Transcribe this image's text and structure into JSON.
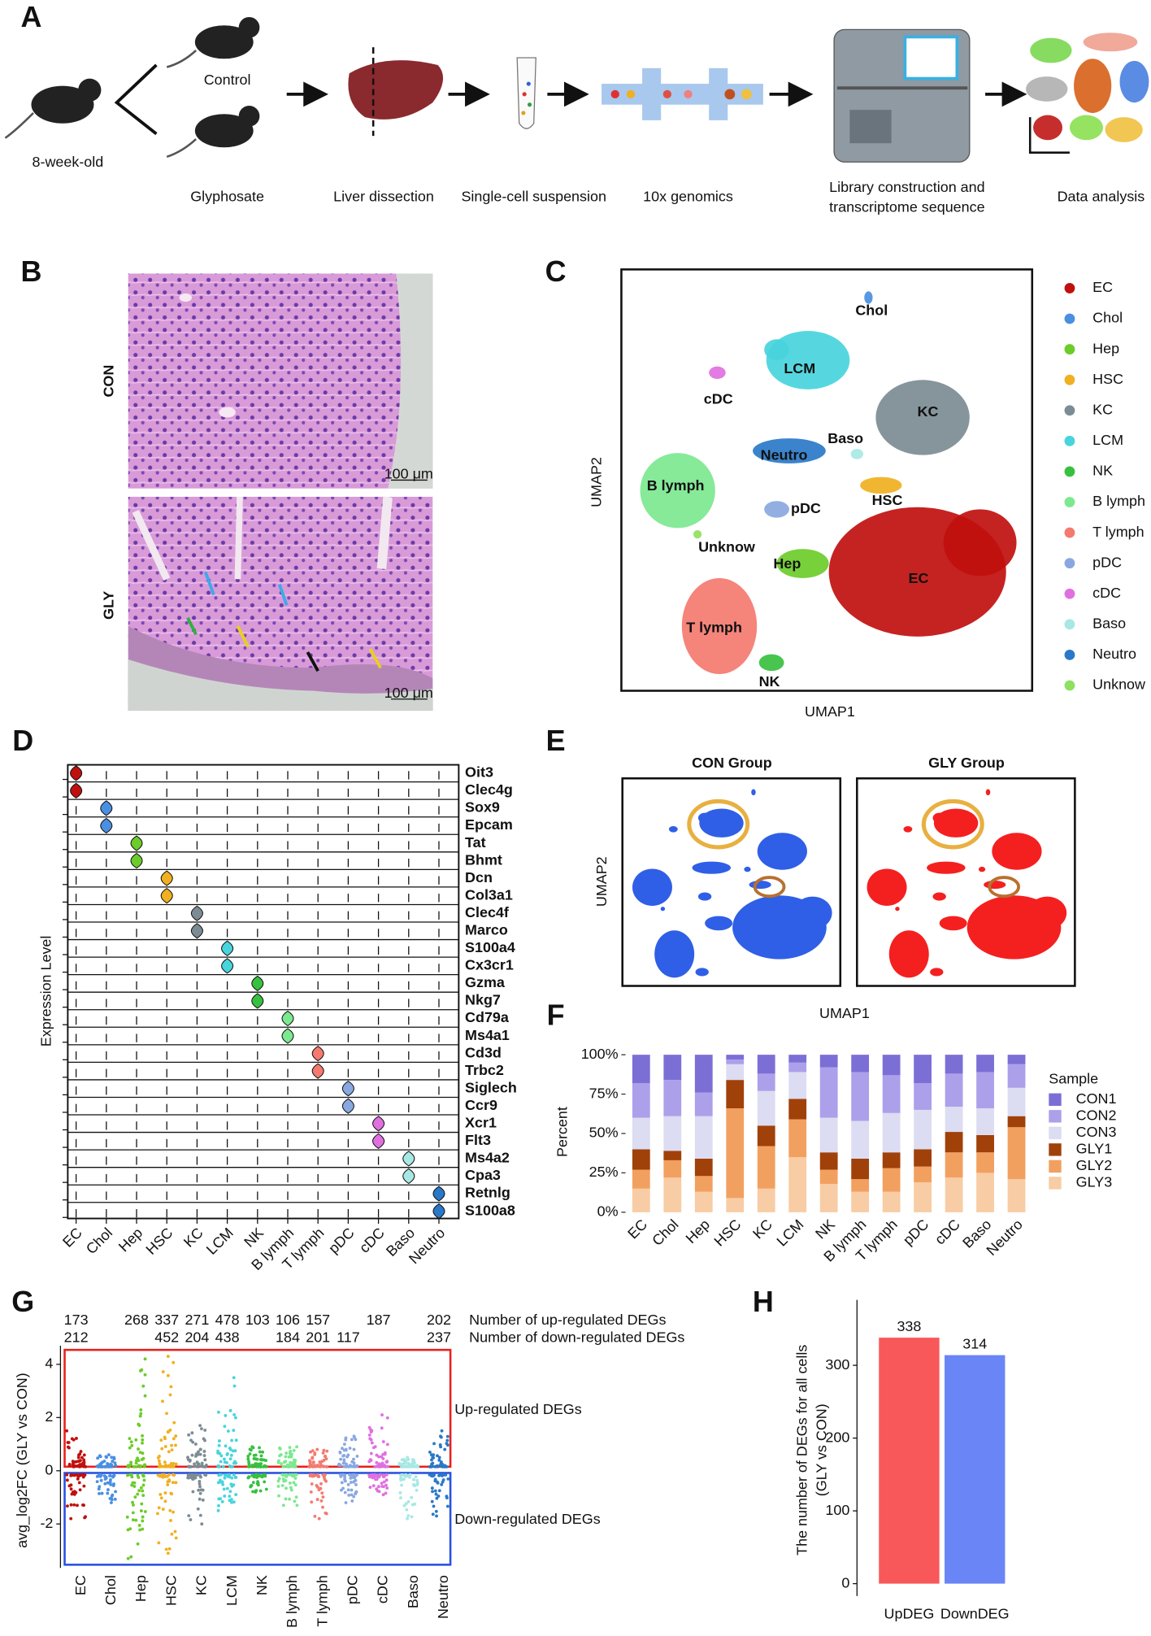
{
  "panel_labels": [
    "A",
    "B",
    "C",
    "D",
    "E",
    "F",
    "G",
    "H"
  ],
  "panel_a": {
    "mouse_labels": {
      "control": "Control",
      "age": "8-week-old"
    },
    "steps": [
      [
        "Glyphosate"
      ],
      [
        "Liver dissection"
      ],
      [
        "Single-cell suspension"
      ],
      [
        "10x genomics"
      ],
      [
        "Library construction and",
        "transcriptome sequence"
      ],
      [
        "Data analysis"
      ]
    ]
  },
  "panel_b": {
    "rows": [
      "CON",
      "GLY"
    ],
    "scale_bar": "100 μm"
  },
  "panel_c": {
    "xlabel": "UMAP1",
    "ylabel": "UMAP2",
    "clusters": [
      {
        "name": "EC",
        "color": "#c0100e"
      },
      {
        "name": "Chol",
        "color": "#4a8fe0"
      },
      {
        "name": "Hep",
        "color": "#6ccc2a"
      },
      {
        "name": "HSC",
        "color": "#f0b020"
      },
      {
        "name": "KC",
        "color": "#7c8c94"
      },
      {
        "name": "LCM",
        "color": "#48d4dc"
      },
      {
        "name": "NK",
        "color": "#38c040"
      },
      {
        "name": "B lymph",
        "color": "#7ce890"
      },
      {
        "name": "T lymph",
        "color": "#f47a70"
      },
      {
        "name": "pDC",
        "color": "#8aa8e0"
      },
      {
        "name": "cDC",
        "color": "#e070e0"
      },
      {
        "name": "Baso",
        "color": "#a8e8e4"
      },
      {
        "name": "Neutro",
        "color": "#2a78c8"
      },
      {
        "name": "Unknow",
        "color": "#90e060"
      }
    ]
  },
  "panel_d": {
    "ylabel": "Expression Level",
    "genes": [
      "Oit3",
      "Clec4g",
      "Sox9",
      "Epcam",
      "Tat",
      "Bhmt",
      "Dcn",
      "Col3a1",
      "Clec4f",
      "Marco",
      "S100a4",
      "Cx3cr1",
      "Gzma",
      "Nkg7",
      "Cd79a",
      "Ms4a1",
      "Cd3d",
      "Trbc2",
      "Siglech",
      "Ccr9",
      "Xcr1",
      "Flt3",
      "Ms4a2",
      "Cpa3",
      "Retnlg",
      "S100a8"
    ],
    "cell_types": [
      "EC",
      "Chol",
      "Hep",
      "HSC",
      "KC",
      "LCM",
      "NK",
      "B lymph",
      "T lymph",
      "pDC",
      "cDC",
      "Baso",
      "Neutro"
    ]
  },
  "panel_e": {
    "titles": [
      "CON Group",
      "GLY Group"
    ],
    "xlabel": "UMAP1",
    "ylabel": "UMAP2",
    "colors": [
      "#2f5fe6",
      "#f42020"
    ]
  },
  "chart_data": [
    {
      "type": "stacked_bar",
      "ylabel": "Percent",
      "legend_title": "Sample",
      "categories": [
        "EC",
        "Chol",
        "Hep",
        "HSC",
        "KC",
        "LCM",
        "NK",
        "B lymph",
        "T lymph",
        "pDC",
        "cDC",
        "Baso",
        "Neutro"
      ],
      "series": [
        {
          "name": "CON1",
          "color": "#7b6fd6",
          "values": [
            18,
            16,
            24,
            3,
            12,
            5,
            8,
            11,
            13,
            18,
            12,
            11,
            6
          ]
        },
        {
          "name": "CON2",
          "color": "#aca0ea",
          "values": [
            22,
            23,
            15,
            3,
            11,
            6,
            32,
            31,
            24,
            17,
            21,
            23,
            15
          ]
        },
        {
          "name": "CON3",
          "color": "#dcdcf2",
          "values": [
            20,
            22,
            27,
            10,
            22,
            17,
            22,
            24,
            25,
            25,
            16,
            17,
            18
          ]
        },
        {
          "name": "GLY1",
          "color": "#a0410a",
          "values": [
            13,
            6,
            11,
            18,
            13,
            13,
            11,
            13,
            10,
            11,
            13,
            11,
            7
          ]
        },
        {
          "name": "GLY2",
          "color": "#f2a060",
          "values": [
            12,
            11,
            10,
            57,
            27,
            24,
            9,
            8,
            15,
            10,
            16,
            13,
            33
          ]
        },
        {
          "name": "GLY3",
          "color": "#f8cca4",
          "values": [
            15,
            22,
            13,
            9,
            15,
            35,
            18,
            13,
            13,
            19,
            22,
            25,
            21
          ]
        }
      ],
      "ylim": [
        0,
        100
      ],
      "yticks": [
        {
          "value": 0,
          "label": "0%"
        },
        {
          "value": 25,
          "label": "25%"
        },
        {
          "value": 50,
          "label": "50%"
        },
        {
          "value": 75,
          "label": "75%"
        },
        {
          "value": 100,
          "label": "100%"
        }
      ]
    },
    {
      "type": "strip",
      "ylabel": "avg_log2FC (GLY vs CON)",
      "categories": [
        "EC",
        "Chol",
        "Hep",
        "HSC",
        "KC",
        "LCM",
        "NK",
        "B lymph",
        "T lymph",
        "pDC",
        "cDC",
        "Baso",
        "Neutro"
      ],
      "up_counts": [
        173,
        null,
        268,
        337,
        271,
        478,
        103,
        106,
        157,
        null,
        187,
        null,
        202
      ],
      "down_counts": [
        212,
        null,
        null,
        452,
        204,
        438,
        null,
        184,
        201,
        117,
        null,
        null,
        237
      ],
      "up_count_label": "Number of up-regulated DEGs",
      "down_count_label": "Number of down-regulated DEGs",
      "up_region_label": "Up-regulated DEGs",
      "down_region_label": "Down-regulated DEGs",
      "up_color": "#e8201c",
      "down_color": "#2850e0",
      "max_values": [
        1.5,
        0.6,
        4.2,
        4.3,
        1.7,
        3.5,
        0.9,
        0.9,
        0.8,
        1.3,
        2.1,
        0.5,
        1.5
      ],
      "min_values": [
        -1.8,
        -1.2,
        -3.3,
        -3.1,
        -2.0,
        -1.5,
        -0.8,
        -1.3,
        -1.8,
        -1.2,
        -0.9,
        -1.8,
        -1.7
      ],
      "ylim": [
        -3.65,
        4.7
      ],
      "yticks": [
        -2,
        0,
        2,
        4
      ]
    },
    {
      "type": "bar",
      "ylabel": [
        "The number of DEGs for all cells",
        "(GLY vs CON)"
      ],
      "categories": [
        "UpDEG",
        "DownDEG"
      ],
      "values": [
        338,
        314
      ],
      "colors": [
        "#f8585a",
        "#6a85f5"
      ],
      "ylim": [
        -17,
        390
      ],
      "yticks": [
        0,
        100,
        200,
        300
      ]
    }
  ]
}
